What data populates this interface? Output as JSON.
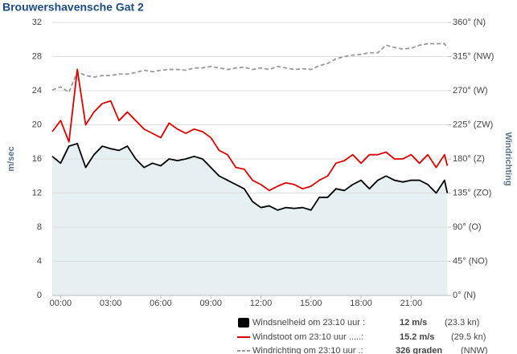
{
  "chart_data": {
    "type": "line",
    "title": "Brouwershavensche Gat 2",
    "y_label": "m/sec",
    "y2_label": "Windrichting",
    "x": [
      -0.5,
      0,
      0.5,
      1,
      1.5,
      2,
      2.5,
      3,
      3.5,
      4,
      4.5,
      5,
      5.5,
      6,
      6.5,
      7,
      7.5,
      8,
      8.5,
      9,
      9.5,
      10,
      10.5,
      11,
      11.5,
      12,
      12.5,
      13,
      13.5,
      14,
      14.5,
      15,
      15.5,
      16,
      16.5,
      17,
      17.5,
      18,
      18.5,
      19,
      19.5,
      20,
      20.5,
      21,
      21.5,
      22,
      22.5,
      23,
      23.17
    ],
    "xlim": [
      -0.5,
      23.2
    ],
    "xticks": [
      {
        "value": 0,
        "label": "00:00"
      },
      {
        "value": 3,
        "label": "03:00"
      },
      {
        "value": 6,
        "label": "06:00"
      },
      {
        "value": 9,
        "label": "09:00"
      },
      {
        "value": 12,
        "label": "12:00"
      },
      {
        "value": 15,
        "label": "15:00"
      },
      {
        "value": 18,
        "label": "18:00"
      },
      {
        "value": 21,
        "label": "21:00"
      }
    ],
    "ylim": [
      0,
      32
    ],
    "yticks": [
      0,
      4,
      8,
      12,
      16,
      20,
      24,
      28,
      32
    ],
    "y2lim": [
      0,
      360
    ],
    "y2ticks": [
      {
        "value": 0,
        "label": "0° (N)"
      },
      {
        "value": 45,
        "label": "45° (NO)"
      },
      {
        "value": 90,
        "label": "90° (O)"
      },
      {
        "value": 135,
        "label": "135° (ZO)"
      },
      {
        "value": 180,
        "label": "180° (Z)"
      },
      {
        "value": 225,
        "label": "225° (ZW)"
      },
      {
        "value": 270,
        "label": "270° (W)"
      },
      {
        "value": 315,
        "label": "315° (NW)"
      },
      {
        "value": 360,
        "label": "360° (N)"
      }
    ],
    "grid": true,
    "series": [
      {
        "name": "Windsnelheid om 23:10 uur :",
        "legend_value": "12 m/s",
        "legend_extra": "(23.3 kn)",
        "color": "#000000",
        "fill": "#e6f0f2",
        "values": [
          16.3,
          15.5,
          17.5,
          17.8,
          15,
          16.5,
          17.5,
          17.2,
          17,
          17.5,
          16,
          15,
          15.5,
          15.2,
          16,
          15.8,
          16,
          16.3,
          16,
          15,
          14,
          13.5,
          13,
          12.5,
          11,
          10.3,
          10.5,
          10,
          10.3,
          10.2,
          10.3,
          10,
          11.5,
          11.5,
          12.5,
          12.3,
          13,
          13.5,
          12.5,
          13.5,
          14,
          13.5,
          13.3,
          13.5,
          13.5,
          13,
          12,
          13.5,
          12
        ]
      },
      {
        "name": "Windstoot om 23:10 uur .....:",
        "legend_value": "15.2 m/s",
        "legend_extra": "(29.5 kn)",
        "color": "#dd0000",
        "values": [
          19.2,
          20.5,
          18,
          26.5,
          20,
          21.5,
          22.5,
          22.8,
          20.5,
          21.5,
          20.5,
          19.5,
          19,
          18.5,
          20.2,
          19.5,
          19,
          19.5,
          19.2,
          18.5,
          17,
          16.5,
          15,
          14.8,
          13.5,
          13,
          12.3,
          12.8,
          13.2,
          13,
          12.5,
          12.8,
          13.5,
          14,
          15.5,
          15.8,
          16.5,
          15.5,
          16.5,
          16.5,
          16.8,
          16,
          16,
          16.5,
          15.5,
          16.5,
          15,
          16.5,
          15.2
        ]
      },
      {
        "name": "Windrichting om 23:10 uur .:",
        "legend_value": "326 graden",
        "legend_extra": "(NNW)",
        "color": "#999999",
        "dashed": true,
        "axis": "y2",
        "values": [
          271,
          275,
          268,
          295,
          290,
          288,
          290,
          290,
          292,
          292,
          294,
          297,
          295,
          297,
          298,
          298,
          297,
          300,
          300,
          302,
          300,
          298,
          300,
          301,
          298,
          300,
          298,
          302,
          300,
          298,
          299,
          298,
          303,
          306,
          312,
          315,
          317,
          318,
          320,
          320,
          330,
          327,
          325,
          326,
          330,
          332,
          332,
          332,
          326
        ]
      }
    ]
  }
}
